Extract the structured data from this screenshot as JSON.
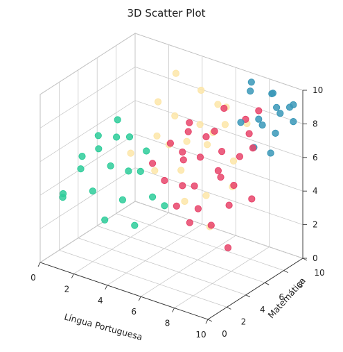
{
  "chart_data": {
    "type": "scatter",
    "title": "3D Scatter Plot",
    "xlabel": "Língua Portuguesa",
    "ylabel": "Matemática",
    "zlabel": "",
    "xlim": [
      0,
      10
    ],
    "ylim": [
      0,
      10
    ],
    "zlim": [
      0,
      10
    ],
    "x_ticks": [
      "0",
      "2",
      "4",
      "6",
      "8",
      "10"
    ],
    "y_ticks": [
      "0",
      "2",
      "4",
      "6",
      "8",
      "10"
    ],
    "z_ticks": [
      "0",
      "2",
      "4",
      "6",
      "8",
      "10"
    ],
    "grid": true,
    "series": [
      {
        "color": "#2ecc9a",
        "points": [
          [
            0.5,
            1.5,
            3.5
          ],
          [
            0.8,
            1.0,
            4.0
          ],
          [
            1.0,
            2.5,
            5.0
          ],
          [
            1.5,
            3.5,
            6.0
          ],
          [
            1.2,
            4.0,
            6.5
          ],
          [
            2.0,
            2.0,
            4.2
          ],
          [
            2.5,
            3.0,
            5.5
          ],
          [
            3.0,
            1.5,
            3.0
          ],
          [
            3.5,
            2.5,
            4.0
          ],
          [
            4.0,
            3.5,
            5.5
          ],
          [
            4.5,
            2.0,
            3.0
          ],
          [
            2.0,
            4.5,
            6.5
          ],
          [
            3.0,
            4.0,
            5.0
          ],
          [
            5.0,
            3.0,
            4.5
          ],
          [
            1.5,
            5.5,
            7.0
          ],
          [
            0.8,
            3.0,
            5.5
          ],
          [
            6.0,
            2.5,
            4.5
          ],
          [
            2.5,
            5.0,
            6.5
          ],
          [
            3.5,
            5.0,
            6.0
          ]
        ]
      },
      {
        "color": "#fde6a8",
        "points": [
          [
            2.0,
            6.0,
            5.0
          ],
          [
            3.0,
            7.0,
            6.0
          ],
          [
            4.0,
            6.5,
            6.0
          ],
          [
            5.0,
            8.0,
            7.0
          ],
          [
            6.0,
            7.0,
            6.5
          ],
          [
            7.0,
            8.0,
            5.5
          ],
          [
            3.5,
            8.0,
            7.0
          ],
          [
            4.5,
            9.0,
            8.5
          ],
          [
            5.5,
            8.5,
            6.5
          ],
          [
            6.5,
            6.0,
            4.0
          ],
          [
            2.5,
            8.0,
            7.5
          ],
          [
            7.5,
            7.0,
            4.5
          ],
          [
            4.0,
            5.0,
            5.0
          ],
          [
            5.5,
            5.5,
            3.5
          ],
          [
            3.0,
            9.0,
            9.0
          ],
          [
            6.0,
            9.0,
            8.0
          ],
          [
            7.0,
            5.5,
            2.5
          ],
          [
            4.5,
            7.5,
            6.0
          ],
          [
            5.0,
            6.0,
            5.0
          ],
          [
            5.5,
            9.0,
            8.0
          ],
          [
            6.5,
            8.0,
            7.5
          ],
          [
            7.8,
            8.0,
            8.0
          ]
        ]
      },
      {
        "color": "#e8456b",
        "points": [
          [
            5.0,
            3.0,
            6.5
          ],
          [
            5.5,
            4.0,
            7.5
          ],
          [
            6.0,
            2.5,
            6.0
          ],
          [
            6.5,
            3.5,
            7.5
          ],
          [
            7.0,
            2.0,
            5.0
          ],
          [
            7.5,
            3.0,
            6.0
          ],
          [
            8.0,
            2.5,
            5.0
          ],
          [
            8.5,
            4.0,
            6.5
          ],
          [
            6.0,
            5.0,
            8.0
          ],
          [
            7.0,
            4.5,
            7.0
          ],
          [
            8.0,
            5.0,
            7.5
          ],
          [
            9.0,
            4.5,
            6.0
          ],
          [
            5.5,
            6.0,
            8.0
          ],
          [
            6.5,
            6.0,
            7.5
          ],
          [
            7.5,
            5.5,
            6.0
          ],
          [
            8.5,
            6.0,
            7.0
          ],
          [
            9.0,
            6.5,
            7.5
          ],
          [
            9.5,
            5.5,
            5.0
          ],
          [
            6.5,
            3.5,
            5.5
          ],
          [
            7.5,
            2.5,
            4.0
          ],
          [
            8.5,
            3.0,
            4.0
          ],
          [
            9.5,
            3.0,
            3.0
          ],
          [
            7.0,
            7.0,
            9.0
          ],
          [
            8.0,
            7.5,
            8.5
          ],
          [
            8.5,
            8.0,
            9.0
          ],
          [
            6.0,
            4.5,
            6.5
          ],
          [
            9.0,
            4.0,
            5.0
          ],
          [
            8.5,
            7.0,
            8.0
          ],
          [
            7.0,
            6.0,
            8.0
          ]
        ]
      },
      {
        "color": "#3a98b8",
        "points": [
          [
            8.0,
            8.0,
            10.0
          ],
          [
            7.5,
            9.0,
            10.0
          ],
          [
            9.0,
            8.5,
            10.0
          ],
          [
            8.5,
            9.5,
            9.5
          ],
          [
            9.5,
            8.5,
            9.0
          ],
          [
            8.0,
            7.0,
            8.5
          ],
          [
            8.5,
            8.0,
            8.5
          ],
          [
            9.0,
            9.0,
            9.0
          ],
          [
            9.5,
            9.5,
            9.0
          ],
          [
            10.0,
            9.0,
            8.5
          ],
          [
            8.5,
            7.5,
            7.0
          ],
          [
            9.5,
            7.5,
            7.0
          ],
          [
            9.5,
            8.0,
            8.0
          ],
          [
            9.0,
            7.5,
            8.5
          ],
          [
            10.0,
            9.0,
            9.5
          ]
        ]
      }
    ]
  }
}
